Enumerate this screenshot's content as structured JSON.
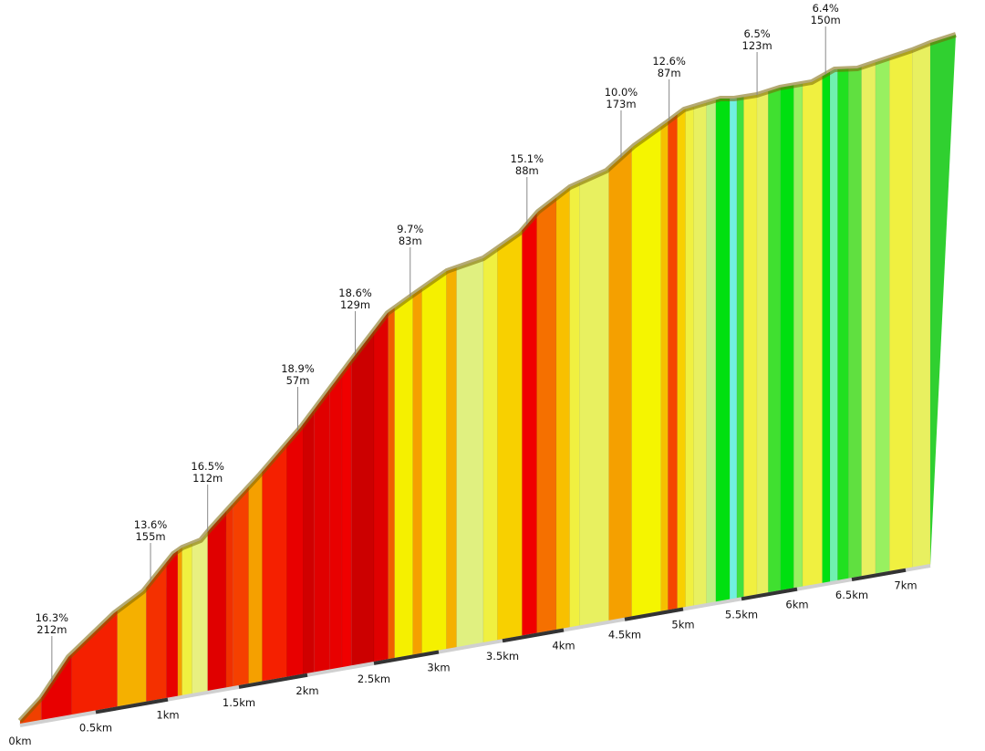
{
  "chart_data": {
    "type": "area",
    "title": "",
    "xlabel": "",
    "ylabel": "",
    "x_unit": "km",
    "xlim": [
      0,
      7.22
    ],
    "x_ticks": [
      "0km",
      "0.5km",
      "1km",
      "1.5km",
      "2km",
      "2.5km",
      "3km",
      "3.5km",
      "4km",
      "4.5km",
      "5km",
      "5.5km",
      "6km",
      "6.5km",
      "7km"
    ],
    "x_tick_values": [
      0,
      0.5,
      1,
      1.5,
      2,
      2.5,
      3,
      3.5,
      4,
      4.5,
      5,
      5.5,
      6,
      6.5,
      7
    ],
    "annotations": [
      {
        "km": 0.21,
        "gradient": "16.3%",
        "length": "212m"
      },
      {
        "km": 0.88,
        "gradient": "13.6%",
        "length": "155m"
      },
      {
        "km": 1.28,
        "gradient": "16.5%",
        "length": "112m"
      },
      {
        "km": 1.93,
        "gradient": "18.9%",
        "length": "57m"
      },
      {
        "km": 2.36,
        "gradient": "18.6%",
        "length": "129m"
      },
      {
        "km": 2.78,
        "gradient": "9.7%",
        "length": "83m"
      },
      {
        "km": 3.7,
        "gradient": "15.1%",
        "length": "88m"
      },
      {
        "km": 4.47,
        "gradient": "10.0%",
        "length": "173m"
      },
      {
        "km": 4.88,
        "gradient": "12.6%",
        "length": "87m"
      },
      {
        "km": 5.64,
        "gradient": "6.5%",
        "length": "123m"
      },
      {
        "km": 6.26,
        "gradient": "6.4%",
        "length": "150m"
      }
    ],
    "segments": [
      {
        "start": 0,
        "color": "#f04000"
      },
      {
        "start": 0.14,
        "color": "#e80000"
      },
      {
        "start": 0.34,
        "color": "#f42000"
      },
      {
        "start": 0.65,
        "color": "#f5b000"
      },
      {
        "start": 0.85,
        "color": "#f43000"
      },
      {
        "start": 0.99,
        "color": "#e80000"
      },
      {
        "start": 1.07,
        "color": "#f5a000"
      },
      {
        "start": 1.1,
        "color": "#f0f040"
      },
      {
        "start": 1.17,
        "color": "#e8f080"
      },
      {
        "start": 1.28,
        "color": "#e00000"
      },
      {
        "start": 1.41,
        "color": "#f03000"
      },
      {
        "start": 1.46,
        "color": "#f54000"
      },
      {
        "start": 1.57,
        "color": "#f5a000"
      },
      {
        "start": 1.67,
        "color": "#f52000"
      },
      {
        "start": 1.85,
        "color": "#e80000"
      },
      {
        "start": 1.97,
        "color": "#d00000"
      },
      {
        "start": 2.05,
        "color": "#e00000"
      },
      {
        "start": 2.17,
        "color": "#e80000"
      },
      {
        "start": 2.26,
        "color": "#f00000"
      },
      {
        "start": 2.33,
        "color": "#cc0000"
      },
      {
        "start": 2.5,
        "color": "#e00000"
      },
      {
        "start": 2.61,
        "color": "#f06000"
      },
      {
        "start": 2.66,
        "color": "#f5f000"
      },
      {
        "start": 2.8,
        "color": "#f5a000"
      },
      {
        "start": 2.87,
        "color": "#f5f000"
      },
      {
        "start": 3.06,
        "color": "#f5b000"
      },
      {
        "start": 3.14,
        "color": "#e0f080"
      },
      {
        "start": 3.35,
        "color": "#f0f040"
      },
      {
        "start": 3.46,
        "color": "#f8d000"
      },
      {
        "start": 3.66,
        "color": "#f00000"
      },
      {
        "start": 3.78,
        "color": "#f57000"
      },
      {
        "start": 3.94,
        "color": "#f8c000"
      },
      {
        "start": 4.05,
        "color": "#f0f040"
      },
      {
        "start": 4.13,
        "color": "#e8f060"
      },
      {
        "start": 4.37,
        "color": "#f5a000"
      },
      {
        "start": 4.56,
        "color": "#f5f500"
      },
      {
        "start": 4.81,
        "color": "#f5c000"
      },
      {
        "start": 4.87,
        "color": "#f54500"
      },
      {
        "start": 4.95,
        "color": "#f8d000"
      },
      {
        "start": 5.02,
        "color": "#f0f040"
      },
      {
        "start": 5.09,
        "color": "#e8f060"
      },
      {
        "start": 5.2,
        "color": "#c0f080"
      },
      {
        "start": 5.28,
        "color": "#00e010"
      },
      {
        "start": 5.4,
        "color": "#70f0e0"
      },
      {
        "start": 5.46,
        "color": "#40e040"
      },
      {
        "start": 5.52,
        "color": "#f0f040"
      },
      {
        "start": 5.64,
        "color": "#e8f060"
      },
      {
        "start": 5.74,
        "color": "#40e030"
      },
      {
        "start": 5.85,
        "color": "#00e010"
      },
      {
        "start": 5.97,
        "color": "#98f060"
      },
      {
        "start": 6.05,
        "color": "#f0f040"
      },
      {
        "start": 6.23,
        "color": "#00e010"
      },
      {
        "start": 6.3,
        "color": "#70f0b0"
      },
      {
        "start": 6.37,
        "color": "#20e020"
      },
      {
        "start": 6.47,
        "color": "#60e040"
      },
      {
        "start": 6.59,
        "color": "#e8f060"
      },
      {
        "start": 6.72,
        "color": "#98f060"
      },
      {
        "start": 6.85,
        "color": "#f0f040"
      },
      {
        "start": 7.06,
        "color": "#e8f060"
      }
    ],
    "grid": false,
    "legend": "none"
  }
}
